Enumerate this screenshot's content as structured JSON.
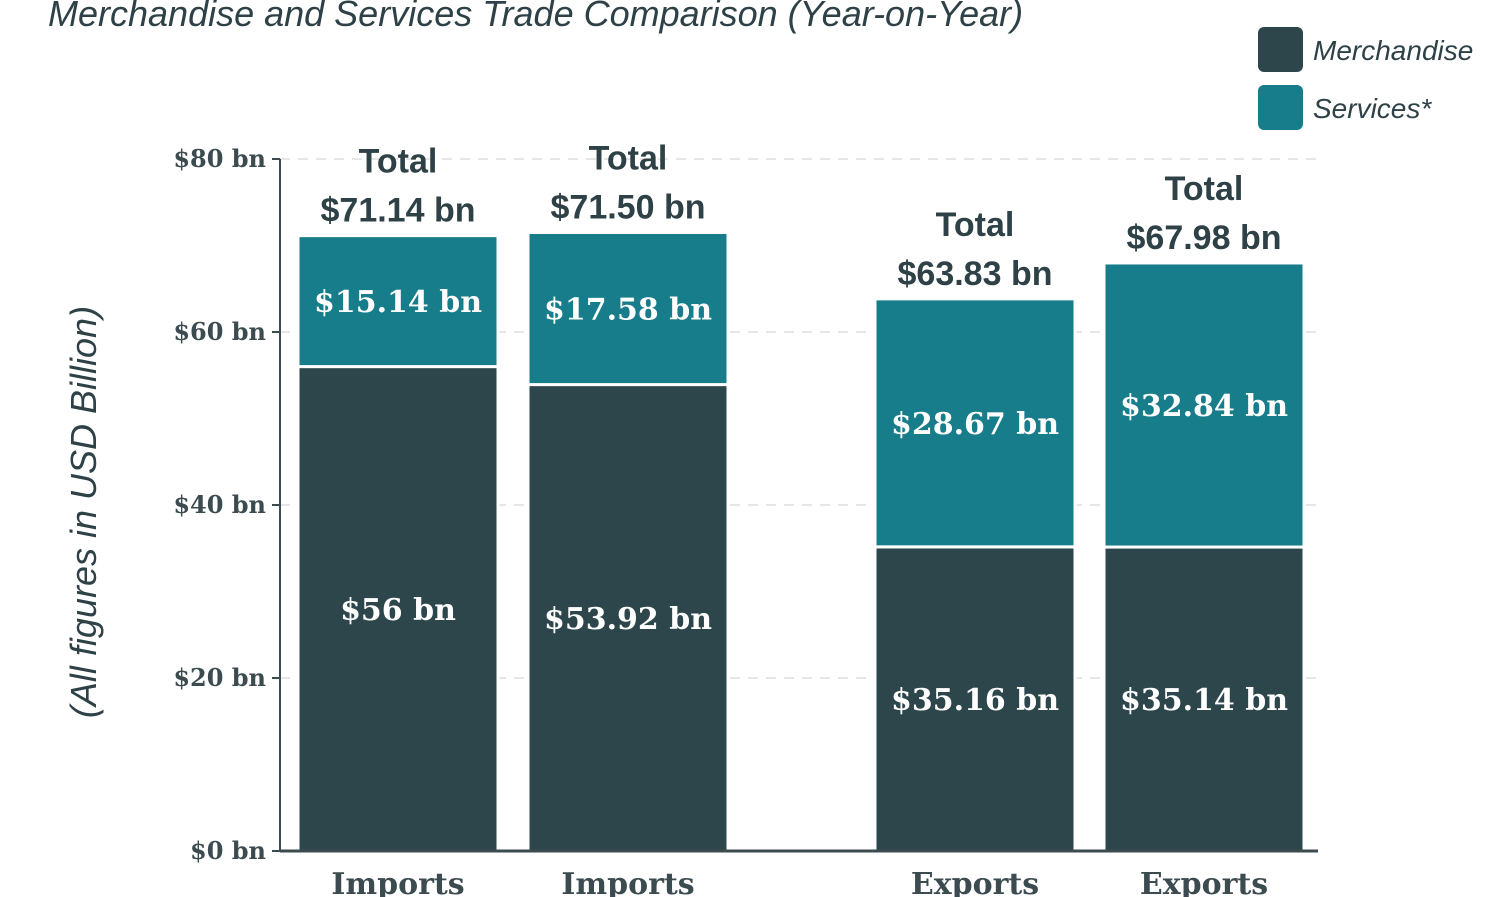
{
  "colors": {
    "merchandise": "#2c464c",
    "services": "#177d8a",
    "text": "#2e4147",
    "axis": "#3b4b50",
    "grid": "#dddddd"
  },
  "chart_data": {
    "type": "bar",
    "stacked": true,
    "title": "Merchandise and Services Trade Comparison (Year-on-Year)",
    "xlabel": "",
    "ylabel": "(All figures in USD Billion)",
    "ylim": [
      0,
      80
    ],
    "yticks": [
      0,
      20,
      40,
      60,
      80
    ],
    "ytick_labels": [
      "$0 bn",
      "$20 bn",
      "$40 bn",
      "$60 bn",
      "$80 bn"
    ],
    "grid": true,
    "legend_position": "top-right",
    "categories": [
      "Imports",
      "Imports",
      "Exports",
      "Exports"
    ],
    "series": [
      {
        "name": "Merchandise",
        "values": [
          56,
          53.92,
          35.16,
          35.14
        ],
        "labels": [
          "$56 bn",
          "$53.92 bn",
          "$35.16 bn",
          "$35.14 bn"
        ]
      },
      {
        "name": "Services*",
        "values": [
          15.14,
          17.58,
          28.67,
          32.84
        ],
        "labels": [
          "$15.14 bn",
          "$17.58 bn",
          "$28.67 bn",
          "$32.84 bn"
        ]
      }
    ],
    "totals": {
      "prefix": "Total",
      "values": [
        71.14,
        71.5,
        63.83,
        67.98
      ],
      "labels": [
        "$71.14 bn",
        "$71.50 bn",
        "$63.83 bn",
        "$67.98 bn"
      ]
    }
  }
}
